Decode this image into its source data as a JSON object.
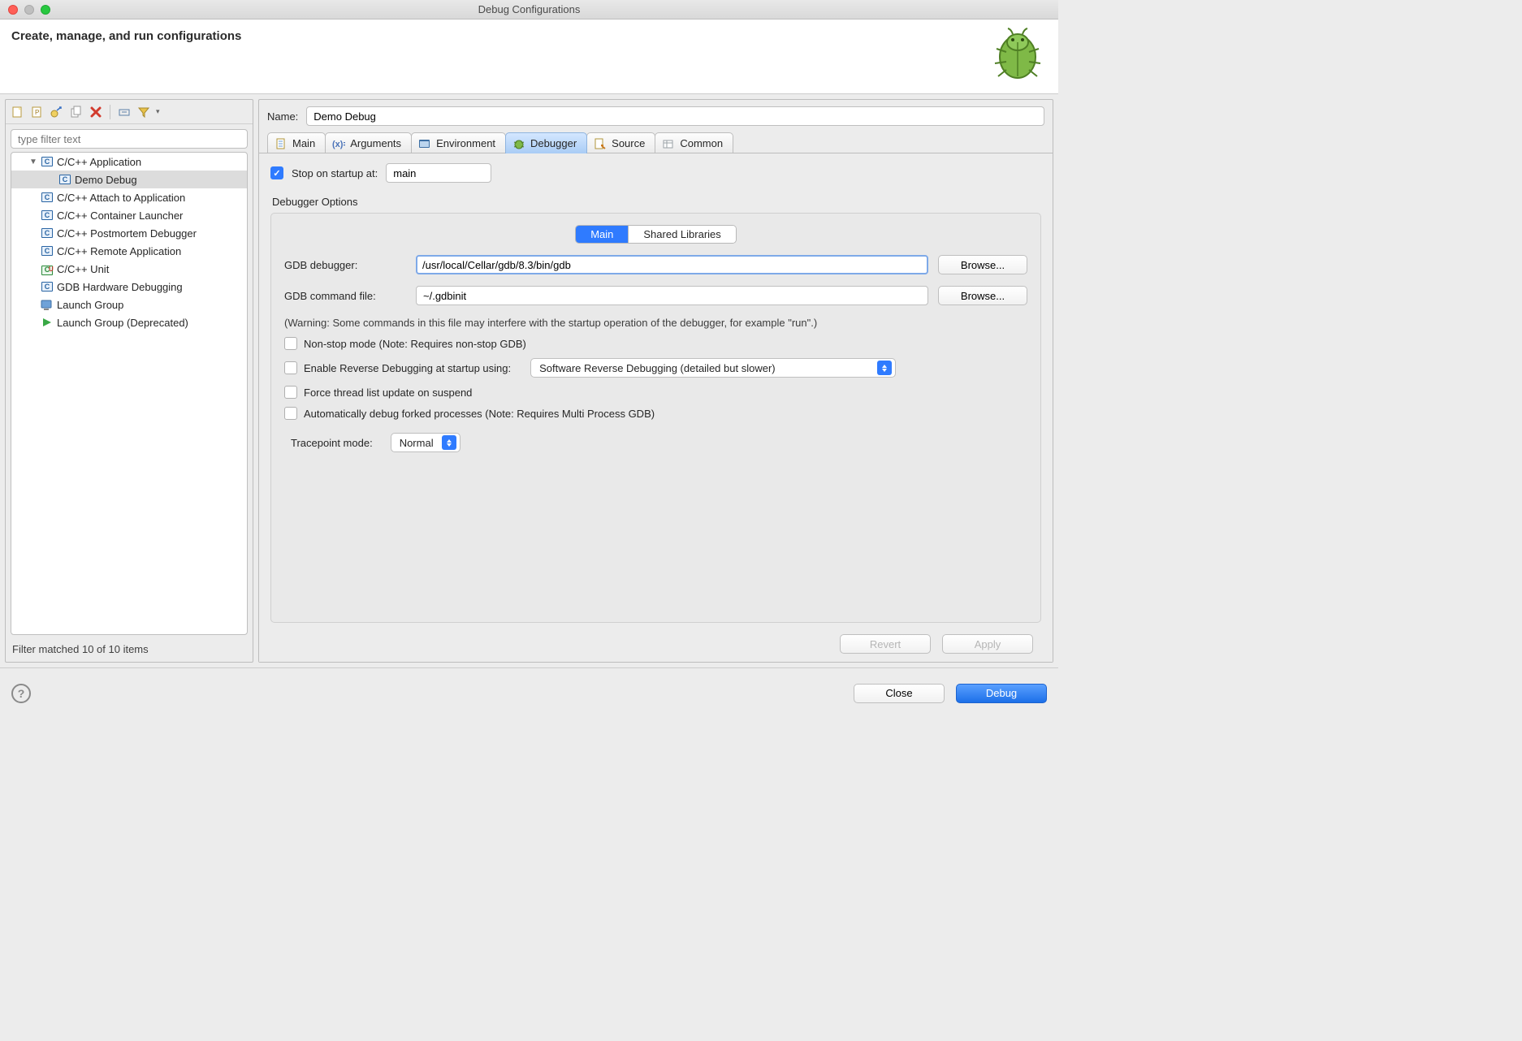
{
  "window": {
    "title": "Debug Configurations"
  },
  "header": {
    "title": "Create, manage, and run configurations"
  },
  "left": {
    "filter_placeholder": "type filter text",
    "tree": [
      {
        "label": "C/C++ Application",
        "icon": "c",
        "expanded": true,
        "children": [
          {
            "label": "Demo Debug",
            "icon": "c",
            "selected": true
          }
        ]
      },
      {
        "label": "C/C++ Attach to Application",
        "icon": "c"
      },
      {
        "label": "C/C++ Container Launcher",
        "icon": "c"
      },
      {
        "label": "C/C++ Postmortem Debugger",
        "icon": "c"
      },
      {
        "label": "C/C++ Remote Application",
        "icon": "c"
      },
      {
        "label": "C/C++ Unit",
        "icon": "cu"
      },
      {
        "label": "GDB Hardware Debugging",
        "icon": "c"
      },
      {
        "label": "Launch Group",
        "icon": "launch"
      },
      {
        "label": "Launch Group (Deprecated)",
        "icon": "play"
      }
    ],
    "status": "Filter matched 10 of 10 items"
  },
  "right": {
    "name_label": "Name:",
    "name_value": "Demo Debug",
    "tabs": [
      "Main",
      "Arguments",
      "Environment",
      "Debugger",
      "Source",
      "Common"
    ],
    "active_tab": "Debugger",
    "stop_on_startup": {
      "checked": true,
      "label": "Stop on startup at:",
      "value": "main"
    },
    "debugger_options_label": "Debugger Options",
    "subtabs": {
      "items": [
        "Main",
        "Shared Libraries"
      ],
      "active": "Main"
    },
    "gdb_debugger": {
      "label": "GDB debugger:",
      "value": "/usr/local/Cellar/gdb/8.3/bin/gdb",
      "browse": "Browse..."
    },
    "gdb_cmdfile": {
      "label": "GDB command file:",
      "value": "~/.gdbinit",
      "browse": "Browse..."
    },
    "warning": "(Warning: Some commands in this file may interfere with the startup operation of the debugger, for example \"run\".)",
    "nonstop": {
      "checked": false,
      "label": "Non-stop mode (Note: Requires non-stop GDB)"
    },
    "reverse": {
      "checked": false,
      "label": "Enable Reverse Debugging at startup using:",
      "select": "Software Reverse Debugging (detailed but slower)"
    },
    "forcethread": {
      "checked": false,
      "label": "Force thread list update on suspend"
    },
    "autofork": {
      "checked": false,
      "label": "Automatically debug forked processes (Note: Requires Multi Process GDB)"
    },
    "tracepoint": {
      "label": "Tracepoint mode:",
      "value": "Normal"
    },
    "revert": "Revert",
    "apply": "Apply"
  },
  "footer": {
    "close": "Close",
    "debug": "Debug"
  }
}
